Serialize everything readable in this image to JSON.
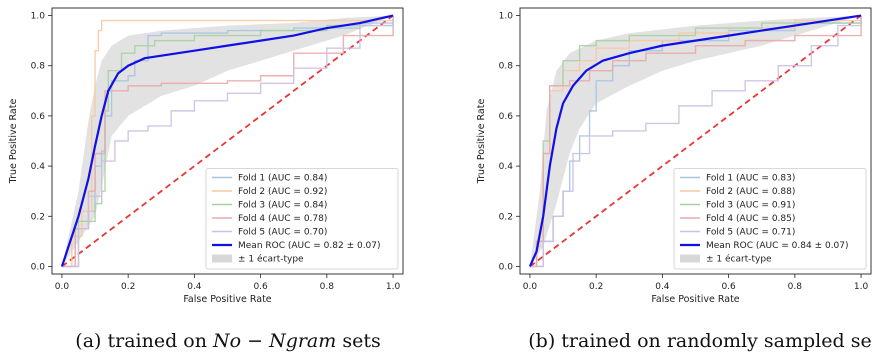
{
  "chart_data": [
    {
      "type": "line",
      "caption": {
        "prefix": "(a) trained on ",
        "math": "No − Ngram",
        "suffix": " sets"
      },
      "xlabel": "False Positive Rate",
      "ylabel": "True Positive Rate",
      "xlim": [
        -0.03,
        1.03
      ],
      "ylim": [
        -0.03,
        1.03
      ],
      "xticks": [
        "0.0",
        "0.2",
        "0.4",
        "0.6",
        "0.8",
        "1.0"
      ],
      "yticks": [
        "0.0",
        "0.2",
        "0.4",
        "0.6",
        "0.8",
        "1.0"
      ],
      "legend_position": "lower-right",
      "series": [
        {
          "name": "Fold 1 (AUC = 0.84)",
          "color": "#a6c5e2",
          "style": "step",
          "points": [
            [
              0,
              0
            ],
            [
              0.04,
              0.15
            ],
            [
              0.08,
              0.22
            ],
            [
              0.1,
              0.4
            ],
            [
              0.12,
              0.46
            ],
            [
              0.13,
              0.6
            ],
            [
              0.15,
              0.74
            ],
            [
              0.2,
              0.76
            ],
            [
              0.22,
              0.82
            ],
            [
              0.26,
              0.92
            ],
            [
              0.3,
              0.93
            ],
            [
              0.5,
              0.94
            ],
            [
              0.7,
              0.95
            ],
            [
              0.9,
              0.97
            ],
            [
              1,
              1
            ]
          ]
        },
        {
          "name": "Fold 2 (AUC = 0.92)",
          "color": "#f8c9a0",
          "style": "step",
          "points": [
            [
              0,
              0
            ],
            [
              0.03,
              0.12
            ],
            [
              0.06,
              0.22
            ],
            [
              0.09,
              0.6
            ],
            [
              0.1,
              0.86
            ],
            [
              0.11,
              0.94
            ],
            [
              0.12,
              0.98
            ],
            [
              0.2,
              0.98
            ],
            [
              0.4,
              0.98
            ],
            [
              0.6,
              0.98
            ],
            [
              0.8,
              0.98
            ],
            [
              1,
              1
            ]
          ]
        },
        {
          "name": "Fold 3 (AUC = 0.84)",
          "color": "#a7d3a0",
          "style": "step",
          "points": [
            [
              0,
              0
            ],
            [
              0.05,
              0.18
            ],
            [
              0.1,
              0.25
            ],
            [
              0.12,
              0.3
            ],
            [
              0.13,
              0.62
            ],
            [
              0.14,
              0.78
            ],
            [
              0.18,
              0.85
            ],
            [
              0.22,
              0.88
            ],
            [
              0.28,
              0.9
            ],
            [
              0.4,
              0.92
            ],
            [
              0.6,
              0.94
            ],
            [
              0.8,
              0.96
            ],
            [
              1,
              1
            ]
          ]
        },
        {
          "name": "Fold 4 (AUC = 0.78)",
          "color": "#eaa9a9",
          "style": "step",
          "points": [
            [
              0,
              0
            ],
            [
              0.04,
              0.15
            ],
            [
              0.08,
              0.3
            ],
            [
              0.1,
              0.45
            ],
            [
              0.13,
              0.7
            ],
            [
              0.2,
              0.72
            ],
            [
              0.3,
              0.73
            ],
            [
              0.5,
              0.74
            ],
            [
              0.6,
              0.76
            ],
            [
              0.7,
              0.85
            ],
            [
              0.85,
              0.92
            ],
            [
              1,
              1
            ]
          ]
        },
        {
          "name": "Fold 5 (AUC = 0.70)",
          "color": "#cdbfe3",
          "style": "step",
          "points": [
            [
              0,
              0
            ],
            [
              0.05,
              0.15
            ],
            [
              0.08,
              0.28
            ],
            [
              0.12,
              0.42
            ],
            [
              0.16,
              0.5
            ],
            [
              0.2,
              0.54
            ],
            [
              0.26,
              0.56
            ],
            [
              0.33,
              0.62
            ],
            [
              0.4,
              0.66
            ],
            [
              0.5,
              0.69
            ],
            [
              0.6,
              0.73
            ],
            [
              0.7,
              0.79
            ],
            [
              0.8,
              0.87
            ],
            [
              0.9,
              0.96
            ],
            [
              1,
              1
            ]
          ]
        },
        {
          "name": "Mean ROC (AUC = 0.82 ± 0.07)",
          "color": "#1010e6",
          "style": "line",
          "points": [
            [
              0,
              0
            ],
            [
              0.02,
              0.08
            ],
            [
              0.05,
              0.2
            ],
            [
              0.08,
              0.35
            ],
            [
              0.1,
              0.48
            ],
            [
              0.12,
              0.6
            ],
            [
              0.14,
              0.7
            ],
            [
              0.17,
              0.77
            ],
            [
              0.2,
              0.8
            ],
            [
              0.25,
              0.83
            ],
            [
              0.3,
              0.84
            ],
            [
              0.4,
              0.86
            ],
            [
              0.5,
              0.88
            ],
            [
              0.6,
              0.9
            ],
            [
              0.7,
              0.92
            ],
            [
              0.8,
              0.95
            ],
            [
              0.9,
              0.97
            ],
            [
              1,
              1
            ]
          ]
        }
      ],
      "band": {
        "name": "± 1 écart-type",
        "color": "#d8d8d8",
        "upper": [
          [
            0,
            0
          ],
          [
            0.05,
            0.3
          ],
          [
            0.08,
            0.58
          ],
          [
            0.1,
            0.72
          ],
          [
            0.12,
            0.82
          ],
          [
            0.15,
            0.88
          ],
          [
            0.2,
            0.92
          ],
          [
            0.3,
            0.94
          ],
          [
            0.5,
            0.96
          ],
          [
            0.7,
            0.97
          ],
          [
            0.85,
            0.99
          ],
          [
            1,
            1
          ]
        ],
        "lower": [
          [
            0,
            0
          ],
          [
            0.05,
            0.1
          ],
          [
            0.1,
            0.2
          ],
          [
            0.12,
            0.32
          ],
          [
            0.15,
            0.52
          ],
          [
            0.2,
            0.6
          ],
          [
            0.3,
            0.68
          ],
          [
            0.4,
            0.72
          ],
          [
            0.5,
            0.78
          ],
          [
            0.6,
            0.82
          ],
          [
            0.7,
            0.86
          ],
          [
            0.85,
            0.92
          ],
          [
            1,
            1
          ]
        ]
      },
      "chance_line": {
        "color": "#ee3333",
        "points": [
          [
            0,
            0
          ],
          [
            1,
            1
          ]
        ]
      }
    },
    {
      "type": "line",
      "caption": {
        "prefix": "(b) trained on randomly sampled se",
        "math": "",
        "suffix": ""
      },
      "xlabel": "False Positive Rate",
      "ylabel": "True Positive Rate",
      "xlim": [
        -0.03,
        1.03
      ],
      "ylim": [
        -0.03,
        1.03
      ],
      "xticks": [
        "0.0",
        "0.2",
        "0.4",
        "0.6",
        "0.8",
        "1.0"
      ],
      "yticks": [
        "0.0",
        "0.2",
        "0.4",
        "0.6",
        "0.8",
        "1.0"
      ],
      "legend_position": "lower-right",
      "series": [
        {
          "name": "Fold 1 (AUC = 0.83)",
          "color": "#a6c5e2",
          "style": "step",
          "points": [
            [
              0,
              0
            ],
            [
              0.04,
              0.1
            ],
            [
              0.07,
              0.2
            ],
            [
              0.1,
              0.3
            ],
            [
              0.12,
              0.42
            ],
            [
              0.15,
              0.52
            ],
            [
              0.18,
              0.62
            ],
            [
              0.2,
              0.74
            ],
            [
              0.25,
              0.8
            ],
            [
              0.3,
              0.86
            ],
            [
              0.4,
              0.9
            ],
            [
              0.6,
              0.94
            ],
            [
              0.8,
              0.97
            ],
            [
              1,
              1
            ]
          ]
        },
        {
          "name": "Fold 2 (AUC = 0.88)",
          "color": "#f8c9a0",
          "style": "step",
          "points": [
            [
              0,
              0
            ],
            [
              0.02,
              0.08
            ],
            [
              0.04,
              0.45
            ],
            [
              0.06,
              0.7
            ],
            [
              0.1,
              0.78
            ],
            [
              0.15,
              0.82
            ],
            [
              0.2,
              0.87
            ],
            [
              0.3,
              0.9
            ],
            [
              0.45,
              0.93
            ],
            [
              0.6,
              0.95
            ],
            [
              0.8,
              0.98
            ],
            [
              1,
              1
            ]
          ]
        },
        {
          "name": "Fold 3 (AUC = 0.91)",
          "color": "#a7d3a0",
          "style": "step",
          "points": [
            [
              0,
              0
            ],
            [
              0.02,
              0.1
            ],
            [
              0.04,
              0.5
            ],
            [
              0.06,
              0.72
            ],
            [
              0.1,
              0.82
            ],
            [
              0.15,
              0.88
            ],
            [
              0.2,
              0.9
            ],
            [
              0.3,
              0.92
            ],
            [
              0.5,
              0.95
            ],
            [
              0.7,
              0.97
            ],
            [
              1,
              1
            ]
          ]
        },
        {
          "name": "Fold 4 (AUC = 0.85)",
          "color": "#eaa9a9",
          "style": "step",
          "points": [
            [
              0,
              0
            ],
            [
              0.02,
              0.1
            ],
            [
              0.04,
              0.45
            ],
            [
              0.06,
              0.72
            ],
            [
              0.12,
              0.74
            ],
            [
              0.18,
              0.78
            ],
            [
              0.25,
              0.82
            ],
            [
              0.35,
              0.85
            ],
            [
              0.5,
              0.88
            ],
            [
              0.65,
              0.9
            ],
            [
              0.8,
              0.92
            ],
            [
              1,
              1
            ]
          ]
        },
        {
          "name": "Fold 5 (AUC = 0.71)",
          "color": "#cdbfe3",
          "style": "step",
          "points": [
            [
              0,
              0
            ],
            [
              0.04,
              0.1
            ],
            [
              0.07,
              0.2
            ],
            [
              0.1,
              0.3
            ],
            [
              0.13,
              0.45
            ],
            [
              0.18,
              0.52
            ],
            [
              0.25,
              0.54
            ],
            [
              0.35,
              0.57
            ],
            [
              0.45,
              0.64
            ],
            [
              0.55,
              0.7
            ],
            [
              0.65,
              0.74
            ],
            [
              0.75,
              0.8
            ],
            [
              0.85,
              0.88
            ],
            [
              0.93,
              0.96
            ],
            [
              1,
              1
            ]
          ]
        },
        {
          "name": "Mean ROC (AUC = 0.84 ± 0.07)",
          "color": "#1010e6",
          "style": "line",
          "points": [
            [
              0,
              0
            ],
            [
              0.02,
              0.06
            ],
            [
              0.04,
              0.2
            ],
            [
              0.06,
              0.4
            ],
            [
              0.08,
              0.55
            ],
            [
              0.1,
              0.65
            ],
            [
              0.13,
              0.72
            ],
            [
              0.17,
              0.78
            ],
            [
              0.22,
              0.82
            ],
            [
              0.3,
              0.85
            ],
            [
              0.4,
              0.88
            ],
            [
              0.5,
              0.9
            ],
            [
              0.6,
              0.92
            ],
            [
              0.7,
              0.94
            ],
            [
              0.8,
              0.96
            ],
            [
              0.9,
              0.98
            ],
            [
              1,
              1
            ]
          ]
        }
      ],
      "band": {
        "name": "± 1 écart-type",
        "color": "#d8d8d8",
        "upper": [
          [
            0,
            0
          ],
          [
            0.03,
            0.3
          ],
          [
            0.05,
            0.62
          ],
          [
            0.08,
            0.78
          ],
          [
            0.12,
            0.85
          ],
          [
            0.2,
            0.9
          ],
          [
            0.3,
            0.93
          ],
          [
            0.5,
            0.96
          ],
          [
            0.7,
            0.98
          ],
          [
            0.85,
            0.99
          ],
          [
            1,
            1
          ]
        ],
        "lower": [
          [
            0,
            0
          ],
          [
            0.04,
            0.08
          ],
          [
            0.08,
            0.25
          ],
          [
            0.12,
            0.45
          ],
          [
            0.15,
            0.55
          ],
          [
            0.2,
            0.65
          ],
          [
            0.3,
            0.72
          ],
          [
            0.4,
            0.78
          ],
          [
            0.5,
            0.82
          ],
          [
            0.6,
            0.85
          ],
          [
            0.7,
            0.88
          ],
          [
            0.85,
            0.94
          ],
          [
            1,
            1
          ]
        ]
      },
      "chance_line": {
        "color": "#ee3333",
        "points": [
          [
            0,
            0
          ],
          [
            1,
            1
          ]
        ]
      }
    }
  ]
}
